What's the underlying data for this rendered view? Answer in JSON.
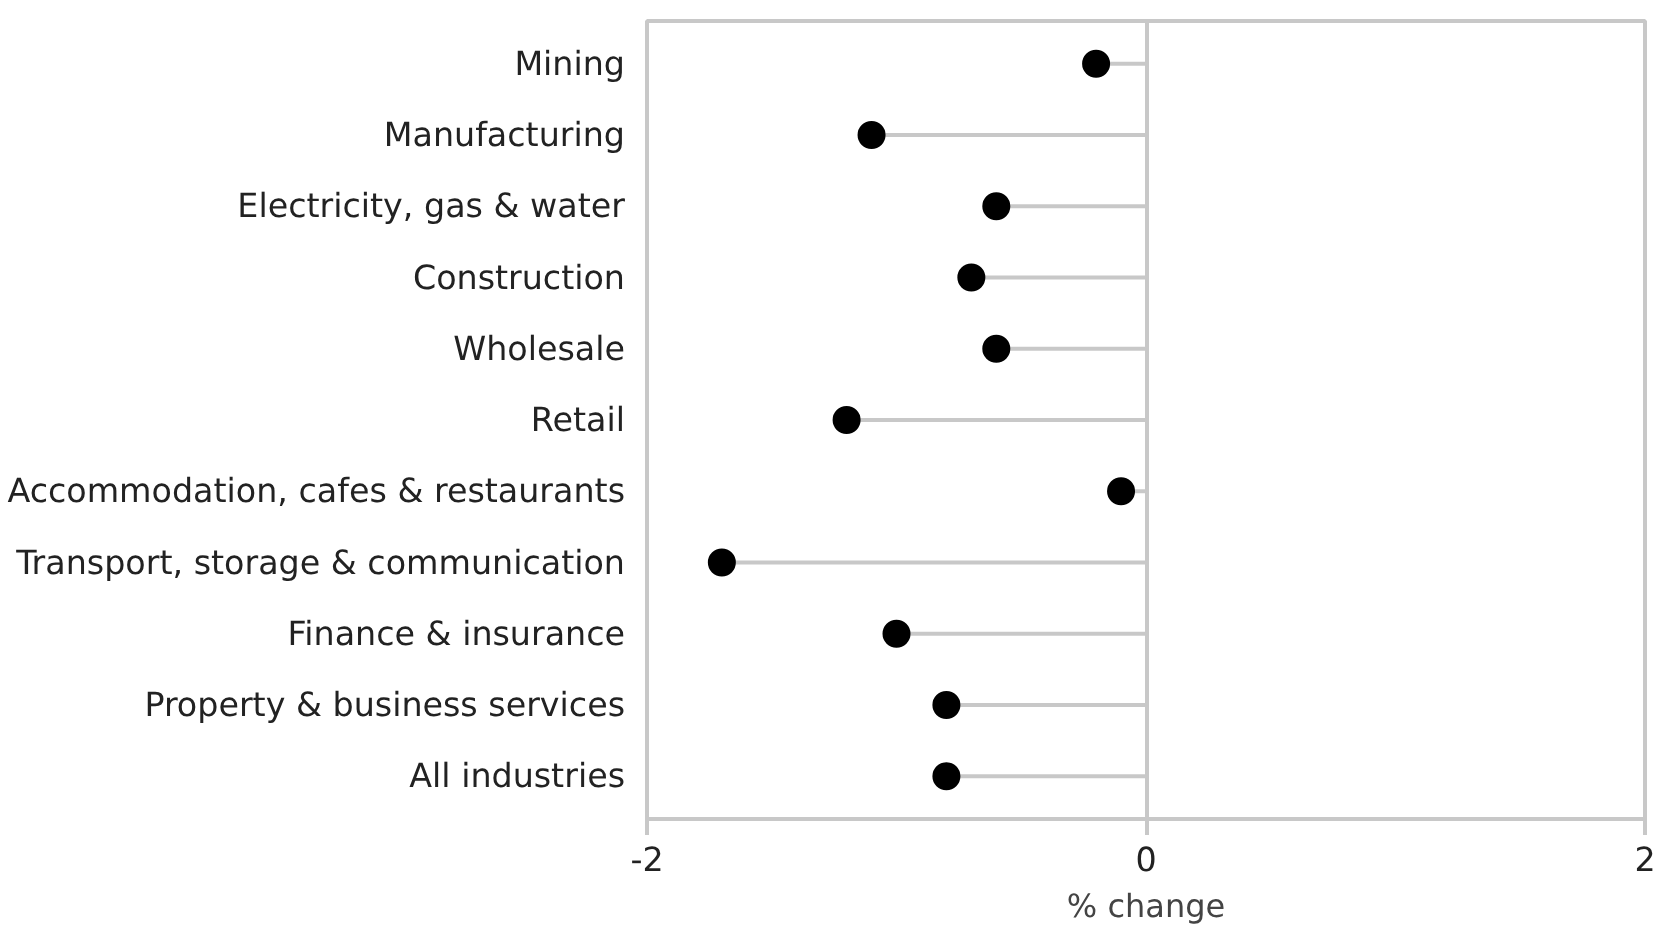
{
  "chart_data": {
    "type": "lollipop",
    "orientation": "horizontal",
    "xlabel": "% change",
    "categories": [
      "Mining",
      "Manufacturing",
      "Electricity, gas & water",
      "Construction",
      "Wholesale",
      "Retail",
      "Accommodation, cafes & restaurants",
      "Transport, storage & communication",
      "Finance & insurance",
      "Property & business services",
      "All industries"
    ],
    "values": [
      -0.2,
      -1.1,
      -0.6,
      -0.7,
      -0.6,
      -1.2,
      -0.1,
      -1.7,
      -1.0,
      -0.8,
      -0.8
    ],
    "color": "#000000",
    "xlim": [
      -2,
      2
    ],
    "xticks": [
      -2,
      0,
      2
    ],
    "grid": "x",
    "marker": "circle"
  }
}
